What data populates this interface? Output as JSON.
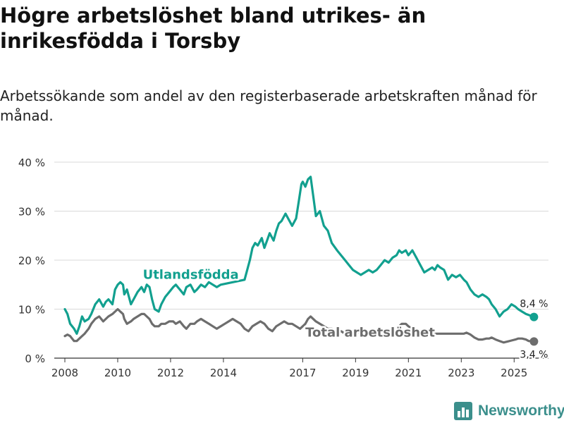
{
  "header": {
    "title": "Högre arbetslöshet bland utrikes- än inrikesfödda i Torsby",
    "subtitle": "Arbetssökande som andel av den registerbaserade arbetskraften månad för månad."
  },
  "brand": {
    "name": "Newsworthy"
  },
  "colors": {
    "foreign": "#12a08f",
    "total": "#6d6d6d",
    "grid": "#d9d9d9",
    "brand": "#3b8f8c"
  },
  "chart_data": {
    "type": "line",
    "title": "Högre arbetslöshet bland utrikes- än inrikesfödda i Torsby",
    "subtitle": "Arbetssökande som andel av den registerbaserade arbetskraften månad för månad.",
    "xlabel": "",
    "ylabel": "",
    "xlim": [
      2007.6,
      2026.3
    ],
    "ylim": [
      0,
      40
    ],
    "y_ticks": [
      0,
      10,
      20,
      30,
      40
    ],
    "y_tick_labels": [
      "0 %",
      "10 %",
      "20 %",
      "30 %",
      "40 %"
    ],
    "x_ticks": [
      2008,
      2010,
      2012,
      2014,
      2017,
      2019,
      2021,
      2023,
      2025
    ],
    "x_tick_labels": [
      "2008",
      "2010",
      "2012",
      "2014",
      "2017",
      "2019",
      "2021",
      "2023",
      "2025"
    ],
    "grid": true,
    "series": [
      {
        "name": "Utlandsfödda",
        "end_label": "8,4 %",
        "end_value": 8.4,
        "x": [
          2008.0,
          2008.1,
          2008.2,
          2008.35,
          2008.45,
          2008.55,
          2008.65,
          2008.75,
          2008.9,
          2009.0,
          2009.15,
          2009.3,
          2009.45,
          2009.55,
          2009.65,
          2009.8,
          2009.9,
          2010.0,
          2010.1,
          2010.2,
          2010.25,
          2010.35,
          2010.5,
          2010.6,
          2010.75,
          2010.9,
          2011.0,
          2011.1,
          2011.2,
          2011.3,
          2011.4,
          2011.55,
          2011.65,
          2011.8,
          2011.95,
          2012.1,
          2012.2,
          2012.35,
          2012.5,
          2012.6,
          2012.75,
          2012.9,
          2013.0,
          2013.15,
          2013.3,
          2013.45,
          2013.6,
          2013.75,
          2013.9,
          2014.8,
          2015.0,
          2015.1,
          2015.2,
          2015.3,
          2015.45,
          2015.55,
          2015.65,
          2015.75,
          2015.9,
          2016.0,
          2016.1,
          2016.2,
          2016.35,
          2016.5,
          2016.6,
          2016.75,
          2016.85,
          2016.95,
          2017.0,
          2017.1,
          2017.2,
          2017.3,
          2017.4,
          2017.5,
          2017.65,
          2017.8,
          2017.95,
          2018.1,
          2018.3,
          2018.45,
          2018.6,
          2018.75,
          2018.9,
          2019.05,
          2019.2,
          2019.35,
          2019.5,
          2019.65,
          2019.8,
          2019.95,
          2020.1,
          2020.25,
          2020.4,
          2020.55,
          2020.65,
          2020.75,
          2020.9,
          2021.0,
          2021.15,
          2021.3,
          2021.45,
          2021.6,
          2021.75,
          2021.9,
          2022.0,
          2022.1,
          2022.2,
          2022.35,
          2022.5,
          2022.65,
          2022.8,
          2022.95,
          2023.1,
          2023.2,
          2023.35,
          2023.5,
          2023.65,
          2023.8,
          2023.95,
          2024.05,
          2024.15,
          2024.3,
          2024.45,
          2024.6,
          2024.75,
          2024.9,
          2025.05,
          2025.15,
          2025.3,
          2025.45,
          2025.55,
          2025.75
        ],
        "y": [
          10.0,
          9.0,
          7.0,
          6.0,
          5.0,
          6.5,
          8.5,
          7.5,
          8.0,
          9.0,
          11.0,
          12.0,
          10.5,
          11.5,
          12.0,
          11.0,
          14.0,
          15.0,
          15.5,
          15.0,
          13.0,
          14.0,
          11.0,
          12.0,
          13.5,
          14.5,
          13.5,
          15.0,
          14.5,
          12.0,
          10.0,
          9.5,
          11.0,
          12.5,
          13.5,
          14.5,
          15.0,
          14.0,
          13.0,
          14.5,
          15.0,
          13.5,
          14.0,
          15.0,
          14.5,
          15.5,
          15.0,
          14.5,
          15.0,
          16.0,
          20.0,
          22.5,
          23.5,
          23.0,
          24.5,
          22.5,
          24.0,
          25.5,
          24.0,
          26.0,
          27.5,
          28.0,
          29.5,
          28.0,
          27.0,
          28.5,
          32.0,
          35.5,
          36.0,
          35.0,
          36.5,
          37.0,
          33.0,
          29.0,
          30.0,
          27.0,
          26.0,
          23.5,
          22.0,
          21.0,
          20.0,
          19.0,
          18.0,
          17.5,
          17.0,
          17.5,
          18.0,
          17.5,
          18.0,
          19.0,
          20.0,
          19.5,
          20.5,
          21.0,
          22.0,
          21.5,
          22.0,
          21.0,
          22.0,
          20.5,
          19.0,
          17.5,
          18.0,
          18.5,
          18.0,
          19.0,
          18.5,
          18.0,
          16.0,
          17.0,
          16.5,
          17.0,
          16.0,
          15.5,
          14.0,
          13.0,
          12.5,
          13.0,
          12.5,
          12.0,
          11.0,
          10.0,
          8.5,
          9.5,
          10.0,
          11.0,
          10.5,
          10.0,
          9.5,
          9.0,
          8.8,
          8.4
        ]
      },
      {
        "name": "Total arbetslöshet",
        "end_label": "3,4 %",
        "end_value": 3.4,
        "x": [
          2008.0,
          2008.1,
          2008.2,
          2008.35,
          2008.45,
          2008.55,
          2008.65,
          2008.75,
          2008.9,
          2009.0,
          2009.15,
          2009.3,
          2009.45,
          2009.55,
          2009.65,
          2009.8,
          2009.9,
          2010.0,
          2010.1,
          2010.2,
          2010.25,
          2010.35,
          2010.5,
          2010.6,
          2010.75,
          2010.9,
          2011.0,
          2011.1,
          2011.2,
          2011.3,
          2011.4,
          2011.55,
          2011.65,
          2011.8,
          2011.95,
          2012.1,
          2012.2,
          2012.35,
          2012.5,
          2012.6,
          2012.75,
          2012.9,
          2013.0,
          2013.15,
          2013.3,
          2013.45,
          2013.6,
          2013.75,
          2013.9,
          2014.05,
          2014.2,
          2014.35,
          2014.5,
          2014.65,
          2014.8,
          2014.95,
          2015.1,
          2015.25,
          2015.4,
          2015.55,
          2015.7,
          2015.85,
          2016.0,
          2016.15,
          2016.3,
          2016.45,
          2016.6,
          2016.75,
          2016.9,
          2017.0,
          2017.1,
          2017.2,
          2017.3,
          2017.5,
          2017.65,
          2017.8,
          2017.95,
          2018.1,
          2018.3,
          2018.45,
          2018.6,
          2018.75,
          2018.9,
          2019.05,
          2019.2,
          2019.35,
          2019.5,
          2019.65,
          2019.8,
          2019.95,
          2020.1,
          2020.25,
          2020.4,
          2020.55,
          2020.65,
          2020.75,
          2020.9,
          2021.0,
          2021.15,
          2021.3,
          2021.45,
          2021.6,
          2021.75,
          2021.9,
          2022.0,
          2022.1,
          2022.2,
          2022.35,
          2022.5,
          2022.65,
          2022.8,
          2022.95,
          2023.1,
          2023.2,
          2023.35,
          2023.5,
          2023.65,
          2023.8,
          2023.95,
          2024.05,
          2024.15,
          2024.3,
          2024.45,
          2024.6,
          2024.75,
          2024.9,
          2025.05,
          2025.15,
          2025.3,
          2025.45,
          2025.55,
          2025.75
        ],
        "y": [
          4.5,
          4.8,
          4.5,
          3.5,
          3.5,
          4.0,
          4.5,
          5.0,
          6.0,
          7.0,
          8.0,
          8.5,
          7.5,
          8.0,
          8.5,
          9.0,
          9.5,
          10.0,
          9.5,
          9.0,
          8.0,
          7.0,
          7.5,
          8.0,
          8.5,
          9.0,
          9.0,
          8.5,
          8.0,
          7.0,
          6.5,
          6.5,
          7.0,
          7.0,
          7.5,
          7.5,
          7.0,
          7.5,
          6.5,
          6.0,
          7.0,
          7.0,
          7.5,
          8.0,
          7.5,
          7.0,
          6.5,
          6.0,
          6.5,
          7.0,
          7.5,
          8.0,
          7.5,
          7.0,
          6.0,
          5.5,
          6.5,
          7.0,
          7.5,
          7.0,
          6.0,
          5.5,
          6.5,
          7.0,
          7.5,
          7.0,
          7.0,
          6.5,
          6.0,
          6.5,
          7.0,
          8.0,
          8.5,
          7.5,
          7.0,
          6.5,
          6.0,
          6.0,
          5.5,
          5.5,
          5.0,
          5.0,
          5.0,
          5.5,
          5.0,
          5.0,
          5.0,
          5.0,
          5.0,
          5.5,
          5.0,
          5.5,
          5.5,
          5.5,
          6.5,
          7.0,
          7.0,
          6.5,
          6.0,
          5.5,
          5.5,
          5.0,
          5.0,
          5.0,
          5.0,
          5.0,
          5.0,
          5.0,
          5.0,
          5.0,
          5.0,
          5.0,
          5.0,
          5.2,
          4.8,
          4.2,
          3.8,
          3.8,
          4.0,
          4.0,
          4.2,
          3.8,
          3.5,
          3.2,
          3.4,
          3.6,
          3.8,
          4.0,
          4.0,
          3.8,
          3.5,
          3.4
        ]
      }
    ]
  }
}
